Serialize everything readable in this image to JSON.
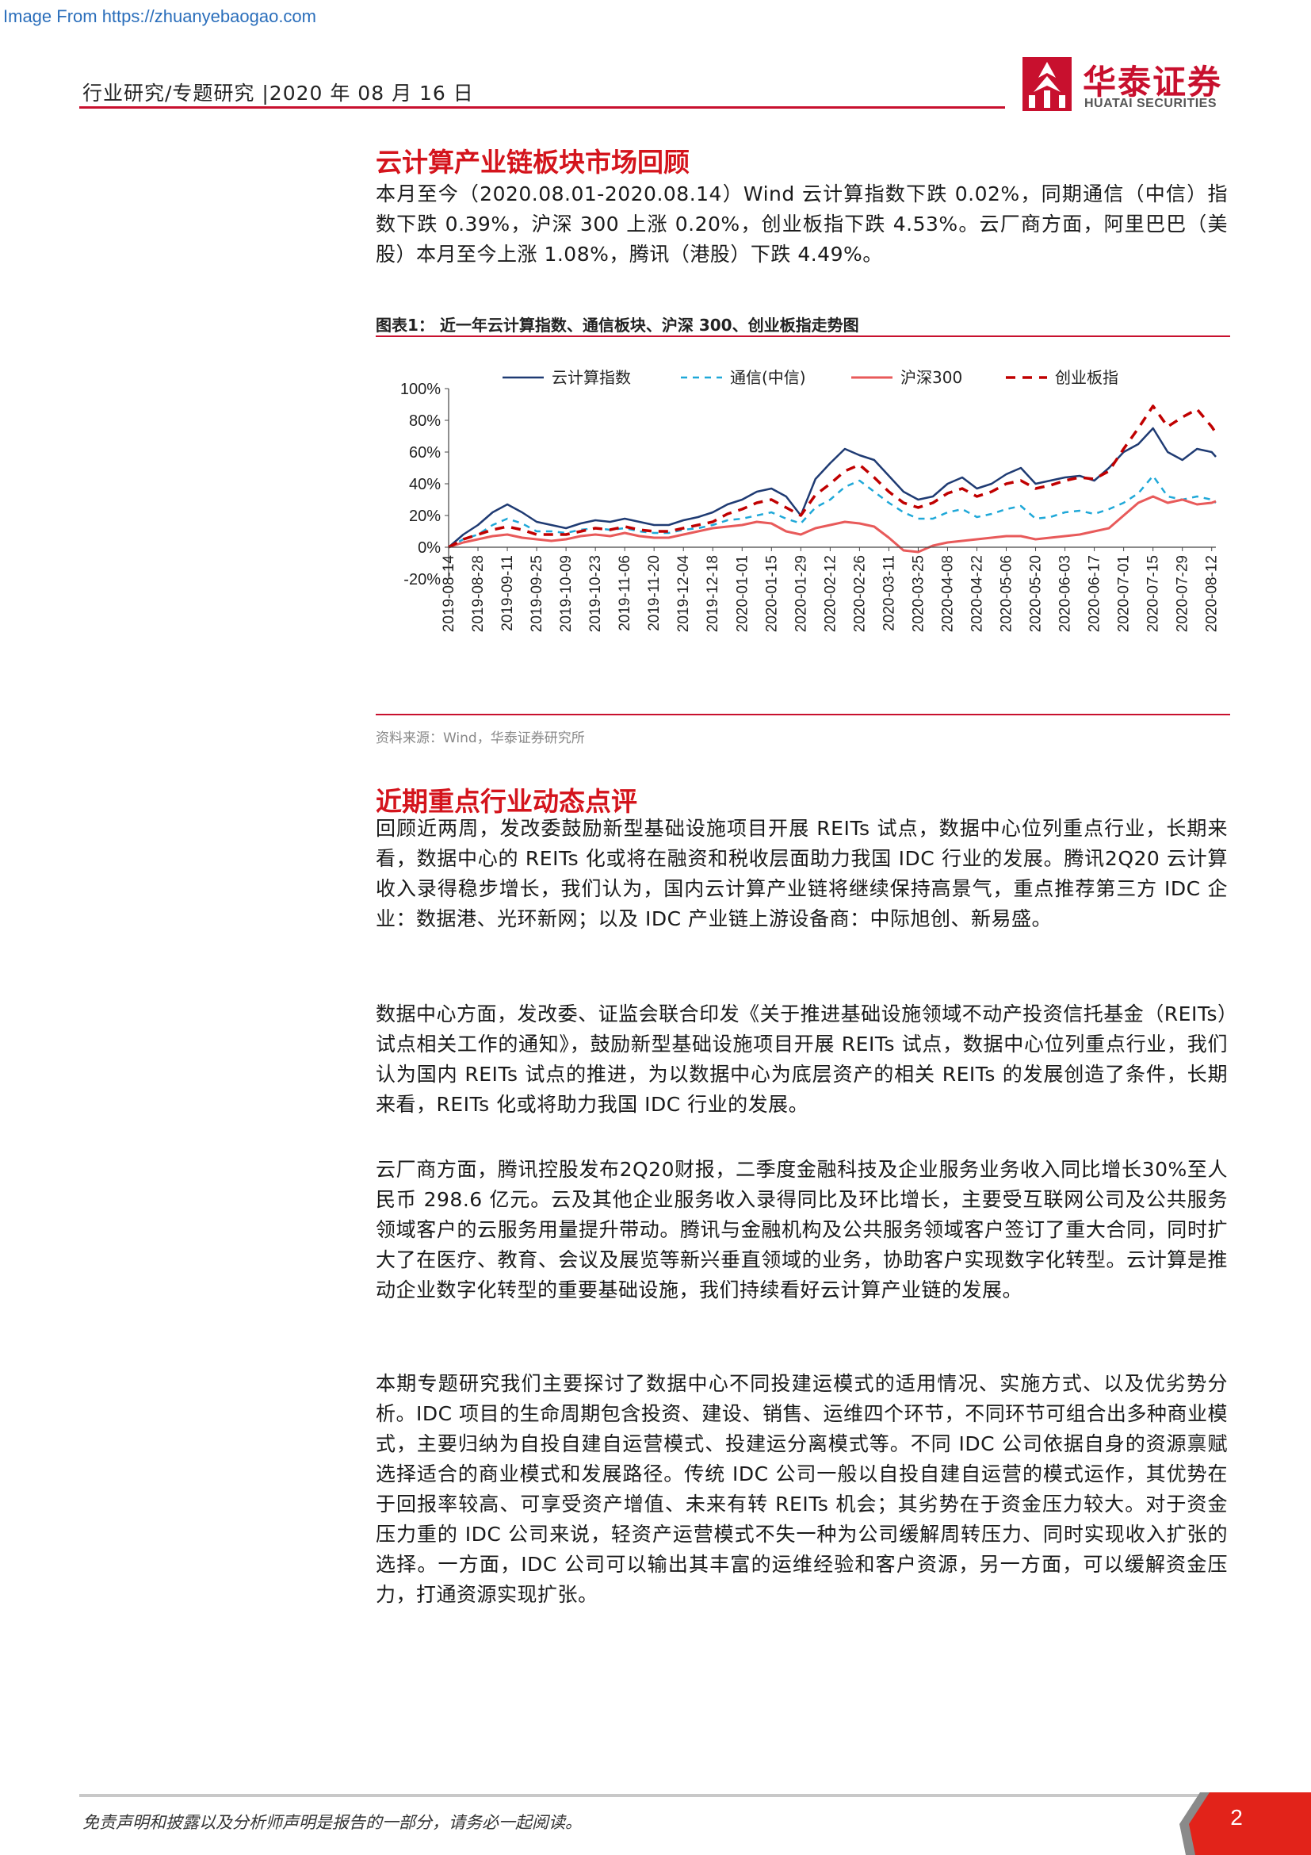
{
  "source_url": "Image From https://zhuanyebaogao.com",
  "header": {
    "text": "行业研究/专题研究 |2020 年 08 月 16 日"
  },
  "logo": {
    "cn": "华泰证券",
    "en": "HUATAI SECURITIES",
    "color": "#c8102e"
  },
  "section1": {
    "title": "云计算产业链板块市场回顾",
    "intro": "本月至今（2020.08.01-2020.08.14）Wind 云计算指数下跌 0.02%，同期通信（中信）指数下跌 0.39%，沪深 300 上涨 0.20%，创业板指下跌 4.53%。云厂商方面，阿里巴巴（美股）本月至今上涨 1.08%，腾讯（港股）下跌 4.49%。"
  },
  "figure": {
    "caption": "图表1： 近一年云计算指数、通信板块、沪深 300、创业板指走势图",
    "source": "资料来源：Wind，华泰证券研究所"
  },
  "chart_data": {
    "type": "line",
    "title": "",
    "xlabel": "",
    "ylabel": "",
    "ylim": [
      -20,
      100
    ],
    "y_ticks": [
      "100%",
      "80%",
      "60%",
      "40%",
      "20%",
      "0%",
      "-20%"
    ],
    "y_tick_values": [
      100,
      80,
      60,
      40,
      20,
      0,
      -20
    ],
    "x_ticks": [
      "2019-08-14",
      "2019-08-28",
      "2019-09-11",
      "2019-09-25",
      "2019-10-09",
      "2019-10-23",
      "2019-11-06",
      "2019-11-20",
      "2019-12-04",
      "2019-12-18",
      "2020-01-01",
      "2020-01-15",
      "2020-01-29",
      "2020-02-12",
      "2020-02-26",
      "2020-03-11",
      "2020-03-25",
      "2020-04-08",
      "2020-04-22",
      "2020-05-06",
      "2020-05-20",
      "2020-06-03",
      "2020-06-17",
      "2020-07-01",
      "2020-07-15",
      "2020-07-29",
      "2020-08-12"
    ],
    "legend_position": "top",
    "grid": false,
    "series": [
      {
        "name": "云计算指数",
        "color": "#1f3b73",
        "style": "solid",
        "width": 2.5,
        "x": [
          "2019-08-14",
          "2019-08-21",
          "2019-08-28",
          "2019-09-04",
          "2019-09-11",
          "2019-09-18",
          "2019-09-25",
          "2019-10-02",
          "2019-10-09",
          "2019-10-16",
          "2019-10-23",
          "2019-10-30",
          "2019-11-06",
          "2019-11-13",
          "2019-11-20",
          "2019-11-27",
          "2019-12-04",
          "2019-12-11",
          "2019-12-18",
          "2019-12-25",
          "2020-01-01",
          "2020-01-08",
          "2020-01-15",
          "2020-01-22",
          "2020-01-29",
          "2020-02-05",
          "2020-02-12",
          "2020-02-19",
          "2020-02-26",
          "2020-03-04",
          "2020-03-11",
          "2020-03-18",
          "2020-03-25",
          "2020-04-01",
          "2020-04-08",
          "2020-04-15",
          "2020-04-22",
          "2020-04-29",
          "2020-05-06",
          "2020-05-13",
          "2020-05-20",
          "2020-05-27",
          "2020-06-03",
          "2020-06-10",
          "2020-06-17",
          "2020-06-24",
          "2020-07-01",
          "2020-07-08",
          "2020-07-15",
          "2020-07-22",
          "2020-07-29",
          "2020-08-05",
          "2020-08-12",
          "2020-08-14"
        ],
        "values": [
          0,
          8,
          14,
          22,
          27,
          22,
          16,
          14,
          12,
          15,
          17,
          16,
          18,
          16,
          14,
          14,
          17,
          19,
          22,
          27,
          30,
          35,
          37,
          32,
          20,
          43,
          53,
          62,
          58,
          55,
          45,
          35,
          30,
          32,
          40,
          44,
          37,
          40,
          46,
          50,
          40,
          42,
          44,
          45,
          42,
          50,
          60,
          65,
          75,
          60,
          55,
          62,
          60,
          57
        ]
      },
      {
        "name": "通信(中信)",
        "color": "#1fa8d8",
        "style": "dashed",
        "width": 2.5,
        "x": [
          "2019-08-14",
          "2019-08-21",
          "2019-08-28",
          "2019-09-04",
          "2019-09-11",
          "2019-09-18",
          "2019-09-25",
          "2019-10-02",
          "2019-10-09",
          "2019-10-16",
          "2019-10-23",
          "2019-10-30",
          "2019-11-06",
          "2019-11-13",
          "2019-11-20",
          "2019-11-27",
          "2019-12-04",
          "2019-12-11",
          "2019-12-18",
          "2019-12-25",
          "2020-01-01",
          "2020-01-08",
          "2020-01-15",
          "2020-01-22",
          "2020-01-29",
          "2020-02-05",
          "2020-02-12",
          "2020-02-19",
          "2020-02-26",
          "2020-03-04",
          "2020-03-11",
          "2020-03-18",
          "2020-03-25",
          "2020-04-01",
          "2020-04-08",
          "2020-04-15",
          "2020-04-22",
          "2020-04-29",
          "2020-05-06",
          "2020-05-13",
          "2020-05-20",
          "2020-05-27",
          "2020-06-03",
          "2020-06-10",
          "2020-06-17",
          "2020-06-24",
          "2020-07-01",
          "2020-07-08",
          "2020-07-15",
          "2020-07-22",
          "2020-07-29",
          "2020-08-05",
          "2020-08-12",
          "2020-08-14"
        ],
        "values": [
          0,
          5,
          8,
          14,
          18,
          15,
          10,
          10,
          9,
          11,
          12,
          11,
          12,
          10,
          9,
          9,
          11,
          12,
          14,
          17,
          18,
          20,
          22,
          18,
          15,
          25,
          30,
          38,
          42,
          35,
          28,
          22,
          18,
          18,
          22,
          24,
          19,
          21,
          24,
          26,
          18,
          19,
          22,
          23,
          21,
          24,
          28,
          34,
          45,
          32,
          30,
          32,
          30,
          28
        ]
      },
      {
        "name": "沪深300",
        "color": "#e85a5a",
        "style": "solid",
        "width": 3,
        "x": [
          "2019-08-14",
          "2019-08-21",
          "2019-08-28",
          "2019-09-04",
          "2019-09-11",
          "2019-09-18",
          "2019-09-25",
          "2019-10-02",
          "2019-10-09",
          "2019-10-16",
          "2019-10-23",
          "2019-10-30",
          "2019-11-06",
          "2019-11-13",
          "2019-11-20",
          "2019-11-27",
          "2019-12-04",
          "2019-12-11",
          "2019-12-18",
          "2019-12-25",
          "2020-01-01",
          "2020-01-08",
          "2020-01-15",
          "2020-01-22",
          "2020-01-29",
          "2020-02-05",
          "2020-02-12",
          "2020-02-19",
          "2020-02-26",
          "2020-03-04",
          "2020-03-11",
          "2020-03-18",
          "2020-03-25",
          "2020-04-01",
          "2020-04-08",
          "2020-04-15",
          "2020-04-22",
          "2020-04-29",
          "2020-05-06",
          "2020-05-13",
          "2020-05-20",
          "2020-05-27",
          "2020-06-03",
          "2020-06-10",
          "2020-06-17",
          "2020-06-24",
          "2020-07-01",
          "2020-07-08",
          "2020-07-15",
          "2020-07-22",
          "2020-07-29",
          "2020-08-05",
          "2020-08-12",
          "2020-08-14"
        ],
        "values": [
          0,
          3,
          5,
          7,
          8,
          6,
          5,
          4,
          5,
          7,
          8,
          7,
          9,
          7,
          6,
          6,
          8,
          10,
          12,
          13,
          14,
          16,
          15,
          10,
          8,
          12,
          14,
          16,
          15,
          13,
          6,
          -2,
          -3,
          1,
          3,
          4,
          5,
          6,
          7,
          7,
          5,
          6,
          7,
          8,
          10,
          12,
          20,
          28,
          32,
          28,
          30,
          27,
          28,
          29
        ]
      },
      {
        "name": "创业板指",
        "color": "#c00000",
        "style": "dashed",
        "width": 3.5,
        "x": [
          "2019-08-14",
          "2019-08-21",
          "2019-08-28",
          "2019-09-04",
          "2019-09-11",
          "2019-09-18",
          "2019-09-25",
          "2019-10-02",
          "2019-10-09",
          "2019-10-16",
          "2019-10-23",
          "2019-10-30",
          "2019-11-06",
          "2019-11-13",
          "2019-11-20",
          "2019-11-27",
          "2019-12-04",
          "2019-12-11",
          "2019-12-18",
          "2019-12-25",
          "2020-01-01",
          "2020-01-08",
          "2020-01-15",
          "2020-01-22",
          "2020-01-29",
          "2020-02-05",
          "2020-02-12",
          "2020-02-19",
          "2020-02-26",
          "2020-03-04",
          "2020-03-11",
          "2020-03-18",
          "2020-03-25",
          "2020-04-01",
          "2020-04-08",
          "2020-04-15",
          "2020-04-22",
          "2020-04-29",
          "2020-05-06",
          "2020-05-13",
          "2020-05-20",
          "2020-05-27",
          "2020-06-03",
          "2020-06-10",
          "2020-06-17",
          "2020-06-24",
          "2020-07-01",
          "2020-07-08",
          "2020-07-15",
          "2020-07-22",
          "2020-07-29",
          "2020-08-05",
          "2020-08-12",
          "2020-08-14"
        ],
        "values": [
          0,
          5,
          8,
          11,
          13,
          11,
          8,
          8,
          8,
          10,
          12,
          11,
          13,
          11,
          10,
          10,
          12,
          14,
          16,
          21,
          24,
          28,
          30,
          25,
          20,
          33,
          40,
          48,
          52,
          44,
          35,
          28,
          25,
          28,
          34,
          37,
          32,
          35,
          40,
          42,
          37,
          39,
          42,
          44,
          43,
          48,
          62,
          75,
          89,
          76,
          82,
          87,
          76,
          72
        ]
      }
    ]
  },
  "section2": {
    "title": "近期重点行业动态点评",
    "paragraphs": [
      "回顾近两周，发改委鼓励新型基础设施项目开展 REITs 试点，数据中心位列重点行业，长期来看，数据中心的 REITs 化或将在融资和税收层面助力我国 IDC 行业的发展。腾讯2Q20 云计算收入录得稳步增长，我们认为，国内云计算产业链将继续保持高景气，重点推荐第三方 IDC 企业：数据港、光环新网；以及 IDC 产业链上游设备商：中际旭创、新易盛。",
      "数据中心方面，发改委、证监会联合印发《关于推进基础设施领域不动产投资信托基金（REITs）试点相关工作的通知》，鼓励新型基础设施项目开展 REITs 试点，数据中心位列重点行业，我们认为国内 REITs 试点的推进，为以数据中心为底层资产的相关 REITs 的发展创造了条件，长期来看，REITs 化或将助力我国 IDC 行业的发展。",
      "云厂商方面，腾讯控股发布2Q20财报，二季度金融科技及企业服务业务收入同比增长30%至人民币 298.6 亿元。云及其他企业服务收入录得同比及环比增长，主要受互联网公司及公共服务领域客户的云服务用量提升带动。腾讯与金融机构及公共服务领域客户签订了重大合同，同时扩大了在医疗、教育、会议及展览等新兴垂直领域的业务，协助客户实现数字化转型。云计算是推动企业数字化转型的重要基础设施，我们持续看好云计算产业链的发展。",
      "本期专题研究我们主要探讨了数据中心不同投建运模式的适用情况、实施方式、以及优劣势分析。IDC 项目的生命周期包含投资、建设、销售、运维四个环节，不同环节可组合出多种商业模式，主要归纳为自投自建自运营模式、投建运分离模式等。不同 IDC 公司依据自身的资源禀赋选择适合的商业模式和发展路径。传统 IDC 公司一般以自投自建自运营的模式运作，其优势在于回报率较高、可享受资产增值、未来有转 REITs 机会；其劣势在于资金压力较大。对于资金压力重的 IDC 公司来说，轻资产运营模式不失一种为公司缓解周转压力、同时实现收入扩张的选择。一方面，IDC 公司可以输出其丰富的运维经验和客户资源，另一方面，可以缓解资金压力，打通资源实现扩张。"
    ]
  },
  "footer": {
    "disclaimer": "免责声明和披露以及分析师声明是报告的一部分，请务必一起阅读。",
    "page_number": "2"
  }
}
